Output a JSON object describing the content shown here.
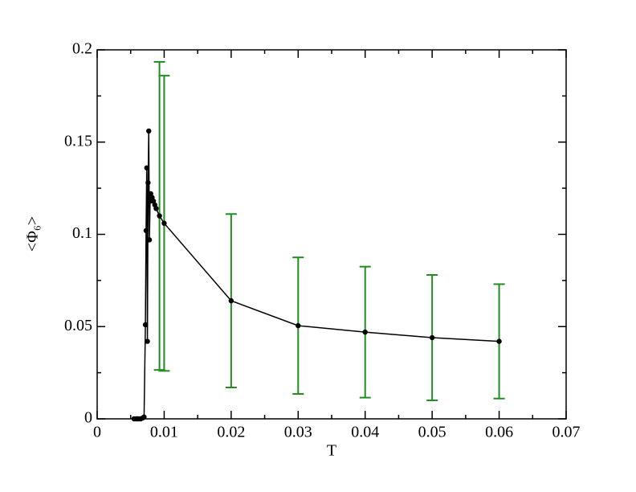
{
  "chart_data": {
    "type": "line",
    "x_label": "T",
    "y_label": "<Φ₆>",
    "x": [
      0.0055,
      0.0058,
      0.006,
      0.0062,
      0.0065,
      0.0068,
      0.007,
      0.0072,
      0.0073,
      0.0074,
      0.0075,
      0.0076,
      0.0077,
      0.0078,
      0.0079,
      0.008,
      0.0082,
      0.0084,
      0.0086,
      0.0088,
      0.0093,
      0.01,
      0.02,
      0.03,
      0.04,
      0.05,
      0.06
    ],
    "series": [
      {
        "color": "#000000",
        "error_color": "#228b22",
        "values": [
          0,
          0,
          0,
          0,
          0,
          0.0005,
          0.001,
          0.051,
          0.102,
          0.136,
          0.042,
          0.128,
          0.156,
          0.097,
          0.118,
          0.122,
          0.12,
          0.118,
          0.116,
          0.114,
          0.11,
          0.106,
          0.064,
          0.0505,
          0.047,
          0.044,
          0.042
        ],
        "errors": [
          null,
          null,
          null,
          null,
          null,
          null,
          null,
          null,
          null,
          null,
          null,
          null,
          null,
          null,
          null,
          null,
          null,
          null,
          null,
          null,
          0.0835,
          0.08,
          0.047,
          0.037,
          0.0355,
          0.034,
          0.031
        ]
      }
    ],
    "xlim": [
      0,
      0.07
    ],
    "xticks": [
      0,
      0.01,
      0.02,
      0.03,
      0.04,
      0.05,
      0.06,
      0.07
    ],
    "ylim": [
      0,
      0.2
    ],
    "yticks": [
      0,
      0.05,
      0.1,
      0.15,
      0.2
    ]
  }
}
